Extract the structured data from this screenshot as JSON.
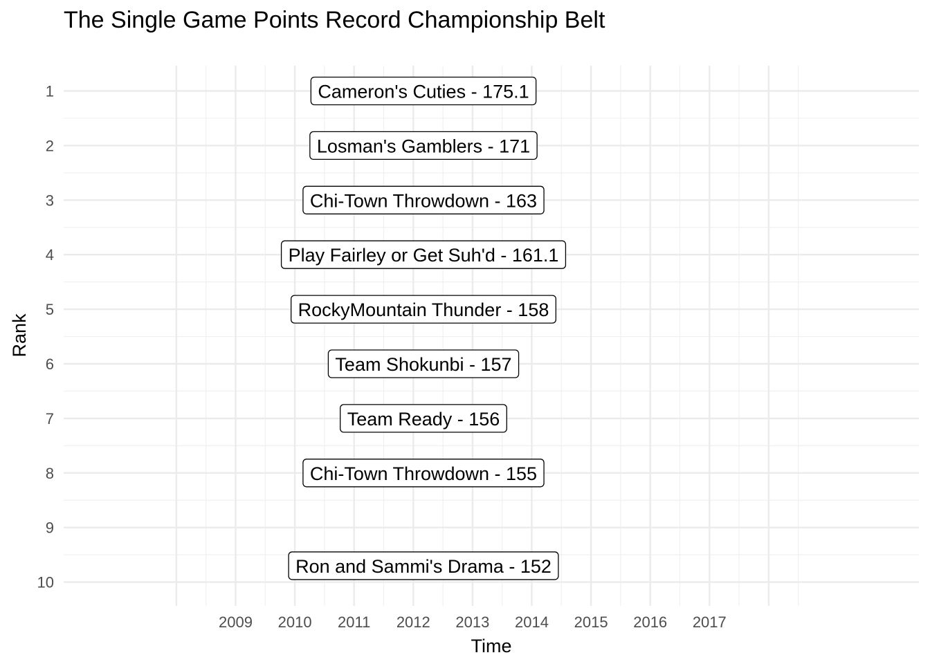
{
  "chart_data": {
    "type": "scatter",
    "title": "The Single Game Points Record Championship Belt",
    "xlabel": "Time",
    "ylabel": "Rank",
    "x_ticks": [
      "2009",
      "2010",
      "2011",
      "2012",
      "2013",
      "2014",
      "2015",
      "2016",
      "2017"
    ],
    "y_ticks": [
      "1",
      "2",
      "3",
      "4",
      "5",
      "6",
      "7",
      "8",
      "9",
      "10"
    ],
    "y_reversed": true,
    "grid": true,
    "legend": "none",
    "labels": [
      {
        "rank": 1,
        "text": "Cameron's Cuties - 175.1"
      },
      {
        "rank": 2,
        "text": "Losman's Gamblers - 171"
      },
      {
        "rank": 3,
        "text": "Chi-Town Throwdown - 163"
      },
      {
        "rank": 4,
        "text": "Play Fairley or Get Suh'd - 161.1"
      },
      {
        "rank": 5,
        "text": "RockyMountain Thunder - 158"
      },
      {
        "rank": 6,
        "text": "Team Shokunbi - 157"
      },
      {
        "rank": 7,
        "text": "Team Ready - 156"
      },
      {
        "rank": 8,
        "text": "Chi-Town Throwdown - 155"
      },
      {
        "rank": 9.7,
        "text": "Ron and Sammi's Drama - 152"
      }
    ]
  }
}
